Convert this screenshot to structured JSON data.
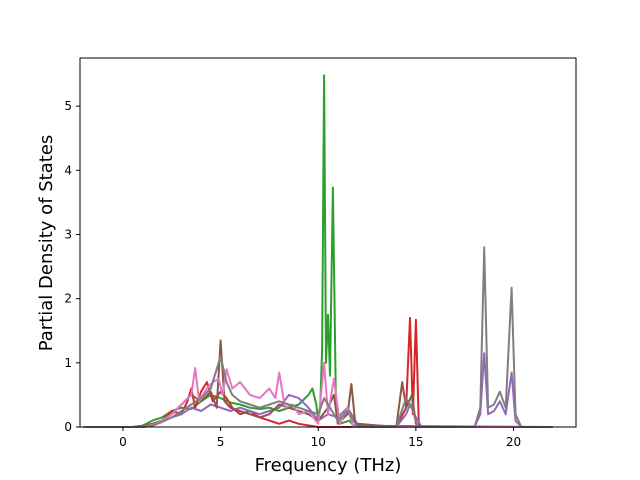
{
  "chart_data": {
    "type": "line",
    "title": "",
    "xlabel": "Frequency (THz)",
    "ylabel": "Partial Density of States",
    "xlim": [
      -2.2,
      23.2
    ],
    "ylim": [
      0,
      5.75
    ],
    "xticks": [
      0,
      5,
      10,
      15,
      20
    ],
    "yticks": [
      0,
      1,
      2,
      3,
      4,
      5
    ],
    "grid": false,
    "legend": "none",
    "series": [
      {
        "color": "#2ca02c",
        "points": [
          [
            -2.0,
            0
          ],
          [
            0.5,
            0
          ],
          [
            1,
            0.02
          ],
          [
            1.5,
            0.1
          ],
          [
            2,
            0.15
          ],
          [
            2.5,
            0.25
          ],
          [
            3,
            0.3
          ],
          [
            3.5,
            0.28
          ],
          [
            4,
            0.4
          ],
          [
            4.5,
            0.5
          ],
          [
            5,
            0.45
          ],
          [
            5.5,
            0.38
          ],
          [
            6,
            0.35
          ],
          [
            6.5,
            0.3
          ],
          [
            7,
            0.28
          ],
          [
            7.5,
            0.3
          ],
          [
            8,
            0.25
          ],
          [
            8.5,
            0.3
          ],
          [
            9,
            0.35
          ],
          [
            9.5,
            0.5
          ],
          [
            9.7,
            0.6
          ],
          [
            9.9,
            0.35
          ],
          [
            10,
            0.1
          ],
          [
            10.1,
            0.3
          ],
          [
            10.2,
            1.2
          ],
          [
            10.3,
            5.48
          ],
          [
            10.4,
            1.0
          ],
          [
            10.5,
            1.75
          ],
          [
            10.6,
            0.8
          ],
          [
            10.75,
            3.73
          ],
          [
            10.9,
            0.5
          ],
          [
            11.1,
            0.05
          ],
          [
            11.6,
            0.1
          ],
          [
            11.8,
            0.02
          ],
          [
            22,
            0
          ]
        ]
      },
      {
        "color": "#d62728",
        "points": [
          [
            -2.0,
            0
          ],
          [
            0.5,
            0
          ],
          [
            1,
            0.01
          ],
          [
            1.5,
            0.05
          ],
          [
            2,
            0.1
          ],
          [
            2.5,
            0.25
          ],
          [
            3,
            0.2
          ],
          [
            3.3,
            0.4
          ],
          [
            3.5,
            0.6
          ],
          [
            3.7,
            0.3
          ],
          [
            4,
            0.55
          ],
          [
            4.3,
            0.7
          ],
          [
            4.6,
            0.4
          ],
          [
            5,
            0.55
          ],
          [
            5.3,
            0.45
          ],
          [
            5.6,
            0.3
          ],
          [
            6,
            0.2
          ],
          [
            6.5,
            0.25
          ],
          [
            7,
            0.15
          ],
          [
            7.5,
            0.1
          ],
          [
            8,
            0.05
          ],
          [
            8.5,
            0.1
          ],
          [
            9,
            0.05
          ],
          [
            10,
            0
          ],
          [
            14,
            0
          ],
          [
            14.5,
            0.3
          ],
          [
            14.7,
            1.7
          ],
          [
            14.85,
            0.2
          ],
          [
            15.0,
            1.67
          ],
          [
            15.15,
            0.05
          ],
          [
            15.3,
            0
          ],
          [
            22,
            0
          ]
        ]
      },
      {
        "color": "#9467bd",
        "points": [
          [
            -2.0,
            0
          ],
          [
            1,
            0
          ],
          [
            1.5,
            0.02
          ],
          [
            2,
            0.08
          ],
          [
            2.5,
            0.15
          ],
          [
            3,
            0.2
          ],
          [
            3.5,
            0.3
          ],
          [
            4,
            0.25
          ],
          [
            4.5,
            0.35
          ],
          [
            5,
            0.3
          ],
          [
            5.5,
            0.25
          ],
          [
            6,
            0.3
          ],
          [
            6.5,
            0.25
          ],
          [
            7,
            0.2
          ],
          [
            7.5,
            0.25
          ],
          [
            8,
            0.3
          ],
          [
            8.5,
            0.5
          ],
          [
            9,
            0.45
          ],
          [
            9.5,
            0.3
          ],
          [
            10,
            0.1
          ],
          [
            10.5,
            0.2
          ],
          [
            11,
            0.15
          ],
          [
            11.5,
            0.3
          ],
          [
            12,
            0.05
          ],
          [
            14,
            0
          ],
          [
            14.5,
            0.2
          ],
          [
            14.7,
            0.35
          ],
          [
            15,
            0.15
          ],
          [
            15.3,
            0
          ],
          [
            18,
            0
          ],
          [
            18.3,
            0.2
          ],
          [
            18.5,
            1.15
          ],
          [
            18.7,
            0.2
          ],
          [
            19,
            0.25
          ],
          [
            19.3,
            0.4
          ],
          [
            19.6,
            0.2
          ],
          [
            19.9,
            0.85
          ],
          [
            20.1,
            0.1
          ],
          [
            20.4,
            0
          ],
          [
            22,
            0
          ]
        ]
      },
      {
        "color": "#8c564b",
        "points": [
          [
            -2.0,
            0
          ],
          [
            0.5,
            0
          ],
          [
            1,
            0.02
          ],
          [
            1.5,
            0.05
          ],
          [
            2,
            0.1
          ],
          [
            2.5,
            0.2
          ],
          [
            3,
            0.35
          ],
          [
            3.5,
            0.5
          ],
          [
            4,
            0.4
          ],
          [
            4.5,
            0.55
          ],
          [
            4.8,
            0.3
          ],
          [
            5,
            1.35
          ],
          [
            5.2,
            0.4
          ],
          [
            5.5,
            0.3
          ],
          [
            6,
            0.25
          ],
          [
            6.5,
            0.2
          ],
          [
            7,
            0.15
          ],
          [
            7.5,
            0.2
          ],
          [
            8,
            0.35
          ],
          [
            8.5,
            0.3
          ],
          [
            9,
            0.25
          ],
          [
            9.5,
            0.2
          ],
          [
            10,
            0.1
          ],
          [
            10.5,
            0.3
          ],
          [
            10.8,
            0.5
          ],
          [
            11,
            0.05
          ],
          [
            11.5,
            0.2
          ],
          [
            11.7,
            0.67
          ],
          [
            11.9,
            0.05
          ],
          [
            14,
            0
          ],
          [
            14.3,
            0.7
          ],
          [
            14.5,
            0.3
          ],
          [
            14.8,
            0.5
          ],
          [
            15,
            0.05
          ],
          [
            15.3,
            0
          ],
          [
            22,
            0
          ]
        ]
      },
      {
        "color": "#e377c2",
        "points": [
          [
            -2.0,
            0
          ],
          [
            1,
            0
          ],
          [
            1.5,
            0.03
          ],
          [
            2,
            0.1
          ],
          [
            2.5,
            0.2
          ],
          [
            3,
            0.35
          ],
          [
            3.5,
            0.5
          ],
          [
            3.7,
            0.92
          ],
          [
            3.9,
            0.4
          ],
          [
            4.3,
            0.6
          ],
          [
            4.6,
            0.7
          ],
          [
            4.9,
            0.75
          ],
          [
            5.1,
            0.5
          ],
          [
            5.3,
            0.9
          ],
          [
            5.6,
            0.6
          ],
          [
            6,
            0.7
          ],
          [
            6.5,
            0.5
          ],
          [
            7,
            0.45
          ],
          [
            7.5,
            0.6
          ],
          [
            7.8,
            0.45
          ],
          [
            8,
            0.85
          ],
          [
            8.3,
            0.3
          ],
          [
            8.7,
            0.35
          ],
          [
            9,
            0.2
          ],
          [
            9.5,
            0.25
          ],
          [
            10,
            0.05
          ],
          [
            10.3,
            1.0
          ],
          [
            10.5,
            0.2
          ],
          [
            10.8,
            0.75
          ],
          [
            11.1,
            0.05
          ],
          [
            11.5,
            0.3
          ],
          [
            11.8,
            0
          ],
          [
            22,
            0
          ]
        ]
      },
      {
        "color": "#7f7f7f",
        "points": [
          [
            -2.0,
            0
          ],
          [
            1,
            0
          ],
          [
            1.5,
            0.02
          ],
          [
            2,
            0.08
          ],
          [
            2.5,
            0.15
          ],
          [
            3,
            0.25
          ],
          [
            3.5,
            0.35
          ],
          [
            4,
            0.45
          ],
          [
            4.5,
            0.6
          ],
          [
            5,
            1.1
          ],
          [
            5.3,
            0.7
          ],
          [
            5.6,
            0.5
          ],
          [
            6,
            0.4
          ],
          [
            6.5,
            0.35
          ],
          [
            7,
            0.3
          ],
          [
            7.5,
            0.35
          ],
          [
            8,
            0.4
          ],
          [
            8.5,
            0.35
          ],
          [
            9,
            0.3
          ],
          [
            9.5,
            0.25
          ],
          [
            10,
            0.2
          ],
          [
            10.3,
            0.45
          ],
          [
            10.6,
            0.3
          ],
          [
            11,
            0.1
          ],
          [
            11.5,
            0.25
          ],
          [
            12,
            0
          ],
          [
            14,
            0
          ],
          [
            14.5,
            0.45
          ],
          [
            14.8,
            0.3
          ],
          [
            15.1,
            0
          ],
          [
            18,
            0
          ],
          [
            18.3,
            0.3
          ],
          [
            18.5,
            2.8
          ],
          [
            18.7,
            0.3
          ],
          [
            19,
            0.35
          ],
          [
            19.3,
            0.55
          ],
          [
            19.6,
            0.3
          ],
          [
            19.9,
            2.17
          ],
          [
            20.1,
            0.2
          ],
          [
            20.4,
            0
          ],
          [
            22,
            0
          ]
        ]
      }
    ]
  }
}
